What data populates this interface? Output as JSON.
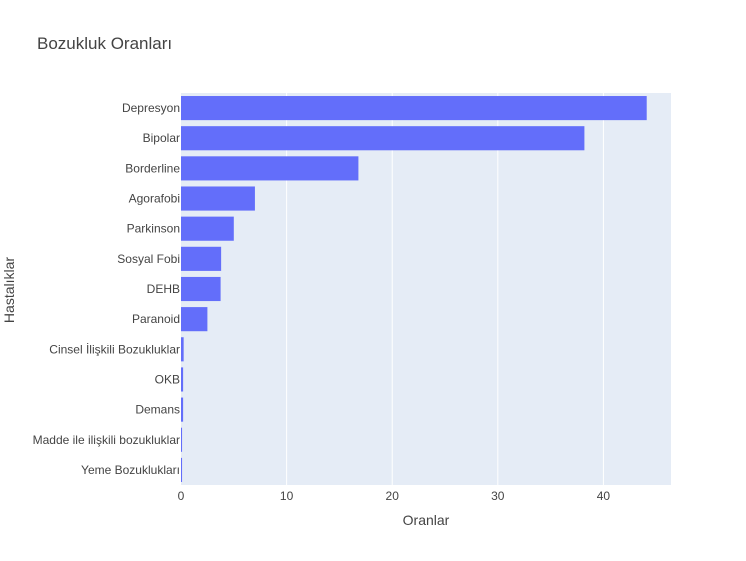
{
  "chart_data": {
    "type": "bar",
    "orientation": "horizontal",
    "title": "Bozukluk Oranları",
    "xlabel": "Oranlar",
    "ylabel": "Hastalıklar",
    "xlim": [
      0,
      46.4
    ],
    "xticks": [
      "0",
      "10",
      "20",
      "30",
      "40"
    ],
    "grid": true,
    "categories": [
      "Depresyon",
      "Bipolar",
      "Borderline",
      "Agorafobi",
      "Parkinson",
      "Sosyal Fobi",
      "DEHB",
      "Paranoid",
      "Cinsel İlişkili Bozukluklar",
      "OKB",
      "Demans",
      "Madde ile ilişkili bozukluklar",
      "Yeme Bozuklukları"
    ],
    "values": [
      44.1,
      38.2,
      16.8,
      7.0,
      5.0,
      3.8,
      3.75,
      2.5,
      0.25,
      0.2,
      0.2,
      0.1,
      0.1
    ],
    "colors": {
      "bar": "#636efa",
      "plot_bg": "#e5ecf6",
      "grid": "#ffffff",
      "text": "#444444"
    }
  }
}
